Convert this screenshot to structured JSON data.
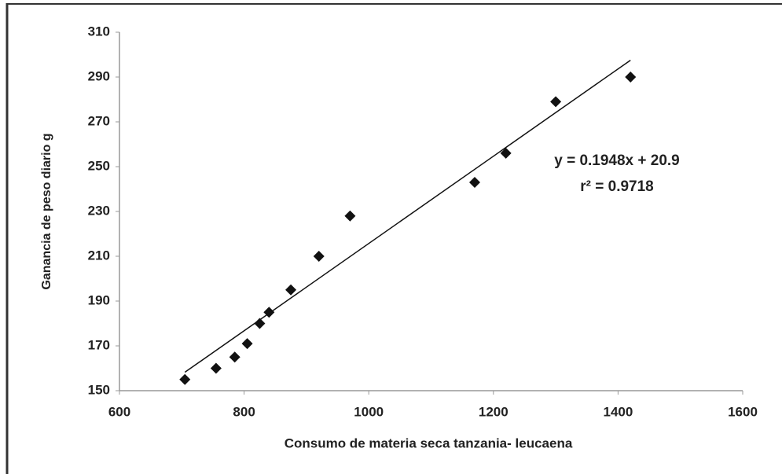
{
  "chart_data": {
    "type": "scatter",
    "xlabel": "Consumo de materia seca tanzania-  leucaena",
    "ylabel": "Ganancia de peso diario g",
    "x": [
      705,
      755,
      785,
      805,
      825,
      840,
      875,
      920,
      970,
      1170,
      1220,
      1300,
      1420
    ],
    "values": [
      155,
      160,
      165,
      171,
      180,
      185,
      195,
      210,
      228,
      243,
      256,
      279,
      290
    ],
    "color": "#111111",
    "xlim": [
      600,
      1600
    ],
    "xticks": [
      600,
      800,
      1000,
      1200,
      1400,
      1600
    ],
    "ylim": [
      150,
      310
    ],
    "yticks": [
      150,
      170,
      190,
      210,
      230,
      250,
      270,
      290,
      310
    ],
    "grid": false,
    "annotations": [
      "y = 0.1948x + 20.9",
      "r² = 0.9718"
    ]
  }
}
